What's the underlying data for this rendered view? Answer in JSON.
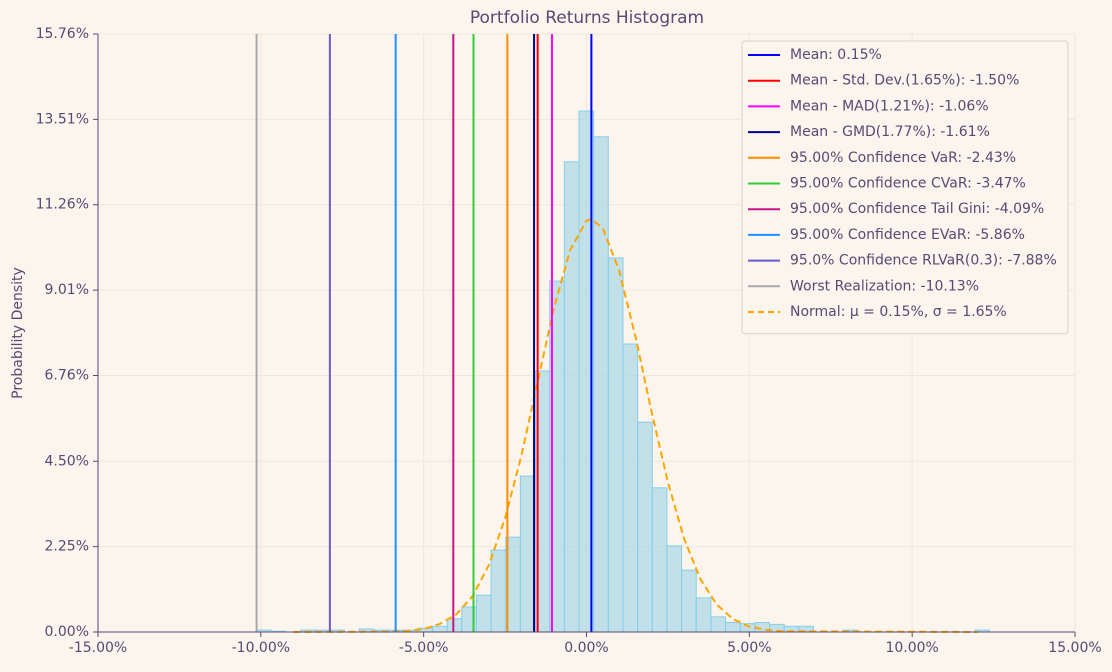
{
  "chart_data": {
    "type": "histogram",
    "title": "Portfolio Returns Histogram",
    "ylabel": "Probability Density",
    "bins": [
      -10.13,
      -9.68,
      -9.23,
      -8.78,
      -8.33,
      -7.88,
      -7.43,
      -6.98,
      -6.53,
      -6.08,
      -5.63,
      -5.18,
      -4.73,
      -4.28,
      -3.83,
      -3.38,
      -2.93,
      -2.48,
      -2.03,
      -1.58,
      -1.13,
      -0.68,
      -0.23,
      0.22,
      0.67,
      1.12,
      1.57,
      2.02,
      2.47,
      2.92,
      3.37,
      3.82,
      4.27,
      4.72,
      5.17,
      5.62,
      6.07,
      6.52,
      6.97,
      7.42,
      7.87,
      8.32,
      8.77,
      9.22,
      9.67,
      10.12,
      10.57,
      11.02,
      11.47,
      11.92,
      12.37
    ],
    "values": [
      0.05,
      0.02,
      0,
      0.05,
      0.05,
      0.05,
      0,
      0.08,
      0.05,
      0.05,
      0.05,
      0.1,
      0.15,
      0.35,
      0.66,
      0.97,
      2.16,
      2.5,
      4.11,
      6.88,
      9.25,
      12.39,
      13.73,
      13.05,
      9.86,
      7.59,
      5.53,
      3.8,
      2.27,
      1.63,
      0.9,
      0.4,
      0.25,
      0.22,
      0.25,
      0.2,
      0.15,
      0.15,
      0,
      0,
      0.05,
      0,
      0,
      0,
      0,
      0,
      0,
      0,
      0,
      0.05
    ],
    "color": "#add8e6",
    "edge_color": "#87ceeb",
    "lines": [
      {
        "name": "Mean: 0.15%",
        "color": "#0000ff",
        "value": 0.15
      },
      {
        "name": "Mean - Std. Dev.(1.65%): -1.50%",
        "color": "#ff0000",
        "value": -1.5
      },
      {
        "name": "Mean - MAD(1.21%): -1.06%",
        "color": "#ff00ff",
        "value": -1.06
      },
      {
        "name": "Mean - GMD(1.77%): -1.61%",
        "color": "#00008b",
        "value": -1.61
      },
      {
        "name": "95.00% Confidence VaR: -2.43%",
        "color": "#ff8c00",
        "value": -2.43
      },
      {
        "name": "95.00% Confidence CVaR: -3.47%",
        "color": "#32cd32",
        "value": -3.47
      },
      {
        "name": "95.00% Confidence Tail Gini: -4.09%",
        "color": "#c71585",
        "value": -4.09
      },
      {
        "name": "95.00% Confidence EVaR: -5.86%",
        "color": "#1e90ff",
        "value": -5.86
      },
      {
        "name": "95.0% Confidence RLVaR(0.3): -7.88%",
        "color": "#6a5acd",
        "value": -7.88
      },
      {
        "name": "Worst Realization: -10.13%",
        "color": "#a9a9a9",
        "value": -10.13
      }
    ],
    "curve": {
      "name": "Normal: μ = 0.15%, σ = 1.65%",
      "color": "#ffa500",
      "x": [
        -9,
        -6,
        -5.5,
        -5,
        -4.5,
        -4,
        -3.5,
        -3,
        -2.5,
        -2,
        -1.5,
        -1,
        -0.5,
        0,
        0.15,
        0.5,
        1,
        1.5,
        2,
        2.5,
        3,
        3.5,
        4,
        4.5,
        5,
        5.5,
        6,
        12
      ],
      "values": [
        0,
        0.01,
        0.03,
        0.08,
        0.21,
        0.46,
        0.94,
        1.76,
        3.0,
        4.65,
        6.6,
        8.53,
        10.07,
        10.84,
        10.88,
        10.64,
        9.53,
        7.79,
        5.8,
        3.95,
        2.45,
        1.39,
        0.72,
        0.34,
        0.14,
        0.06,
        0.02,
        0
      ]
    },
    "xlim": [
      -15,
      15
    ],
    "xticks": [
      {
        "value": -15,
        "label": "-15.00%"
      },
      {
        "value": -10,
        "label": "-10.00%"
      },
      {
        "value": -5,
        "label": "-5.00%"
      },
      {
        "value": 0,
        "label": "0.00%"
      },
      {
        "value": 5,
        "label": "5.00%"
      },
      {
        "value": 10,
        "label": "10.00%"
      },
      {
        "value": 15,
        "label": "15.00%"
      }
    ],
    "ylim": [
      0,
      15.76
    ],
    "yticks": [
      {
        "value": 0,
        "label": "0.00%"
      },
      {
        "value": 2.25,
        "label": "2.25%"
      },
      {
        "value": 4.5,
        "label": "4.50%"
      },
      {
        "value": 6.76,
        "label": "6.76%"
      },
      {
        "value": 9.01,
        "label": "9.01%"
      },
      {
        "value": 11.26,
        "label": "11.26%"
      },
      {
        "value": 13.51,
        "label": "13.51%"
      },
      {
        "value": 15.76,
        "label": "15.76%"
      }
    ],
    "grid": true,
    "legend": "upper right"
  }
}
